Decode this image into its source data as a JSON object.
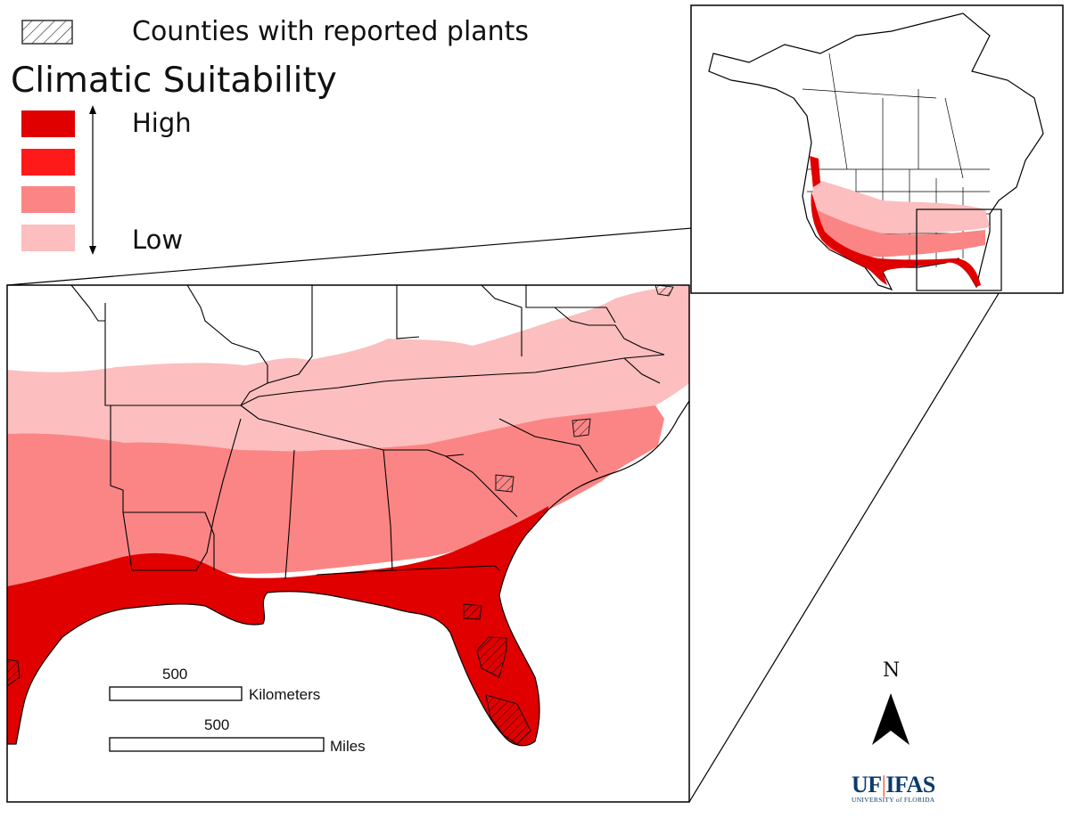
{
  "legend": {
    "hatch_label": "Counties with reported plants",
    "title": "Climatic Suitability",
    "high_label": "High",
    "low_label": "Low",
    "classes": [
      {
        "level": 4,
        "color": "#e00000"
      },
      {
        "level": 3,
        "color": "#ff1a1a"
      },
      {
        "level": 2,
        "color": "#fb8585"
      },
      {
        "level": 1,
        "color": "#fcbebe"
      }
    ]
  },
  "map_colors": {
    "none": "#ffffff",
    "low": "#fcbebe",
    "medium": "#fb8585",
    "high": "#e00000",
    "water": "#ffffff",
    "boundaries": "#000000"
  },
  "scalebar": {
    "km_value": "500",
    "km_unit": "Kilometers",
    "mi_value": "500",
    "mi_unit": "Miles"
  },
  "north_arrow": {
    "label": "N"
  },
  "logo": {
    "left": "UF",
    "separator": "|",
    "right": "IFAS",
    "subtitle": "UNIVERSITY of FLORIDA"
  }
}
